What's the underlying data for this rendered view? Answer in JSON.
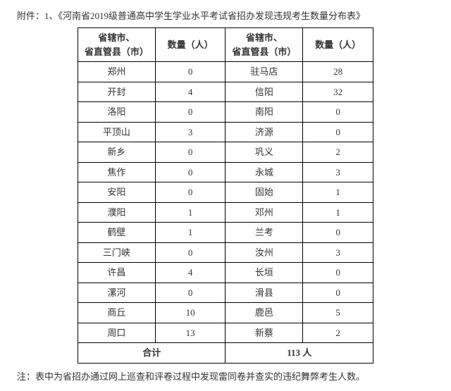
{
  "header": {
    "prefix": "附件：1、",
    "title": "《河南省2019级普通高中学生学业水平考试省招办发现违规考生数量分布表》"
  },
  "table": {
    "columns": {
      "city_line1": "省辖市、",
      "city_line2": "省直管县（市）",
      "count": "数量（人）"
    },
    "rows": [
      {
        "l_city": "郑州",
        "l_num": "0",
        "r_city": "驻马店",
        "r_num": "28"
      },
      {
        "l_city": "开封",
        "l_num": "4",
        "r_city": "信阳",
        "r_num": "32"
      },
      {
        "l_city": "洛阳",
        "l_num": "0",
        "r_city": "南阳",
        "r_num": "0"
      },
      {
        "l_city": "平顶山",
        "l_num": "3",
        "r_city": "济源",
        "r_num": "0"
      },
      {
        "l_city": "新乡",
        "l_num": "0",
        "r_city": "巩义",
        "r_num": "2"
      },
      {
        "l_city": "焦作",
        "l_num": "0",
        "r_city": "永城",
        "r_num": "3"
      },
      {
        "l_city": "安阳",
        "l_num": "0",
        "r_city": "固始",
        "r_num": "1"
      },
      {
        "l_city": "濮阳",
        "l_num": "1",
        "r_city": "邓州",
        "r_num": "1"
      },
      {
        "l_city": "鹤壁",
        "l_num": "1",
        "r_city": "兰考",
        "r_num": "0"
      },
      {
        "l_city": "三门峡",
        "l_num": "0",
        "r_city": "汝州",
        "r_num": "3"
      },
      {
        "l_city": "许昌",
        "l_num": "4",
        "r_city": "长垣",
        "r_num": "0"
      },
      {
        "l_city": "漯河",
        "l_num": "0",
        "r_city": "滑县",
        "r_num": "0"
      },
      {
        "l_city": "商丘",
        "l_num": "10",
        "r_city": "鹿邑",
        "r_num": "5"
      },
      {
        "l_city": "周口",
        "l_num": "13",
        "r_city": "新蔡",
        "r_num": "2"
      }
    ],
    "total": {
      "label": "合计",
      "value": "113 人"
    }
  },
  "footnote": {
    "label": "注：",
    "text": "表中为省招办通过网上巡查和评卷过程中发现雷同卷并查实的违纪舞弊考生人数。"
  }
}
